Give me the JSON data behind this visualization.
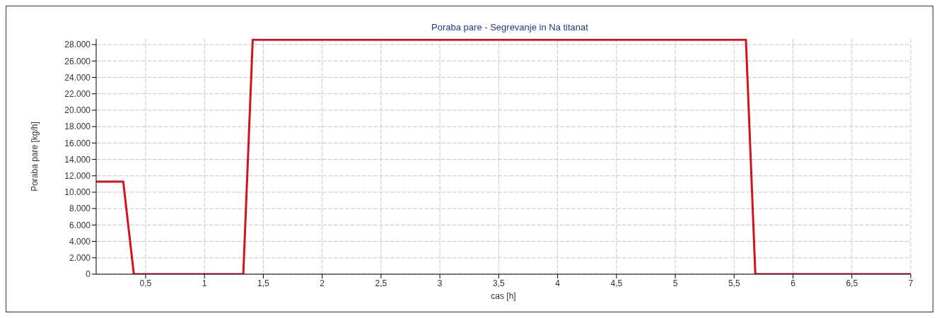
{
  "chart_data": {
    "type": "line",
    "title": "Poraba pare - Segrevanje in Na titanat",
    "xlabel": "cas [h]",
    "ylabel": "Poraba pare [kg/h]",
    "x": [
      0.08,
      0.31,
      0.4,
      1.33,
      1.41,
      5.6,
      5.68,
      7
    ],
    "series": [
      {
        "color": "#d4121e",
        "values": [
          11300,
          11300,
          0,
          0,
          28600,
          28600,
          0,
          0
        ]
      }
    ],
    "xlim": [
      0.08,
      7
    ],
    "xticks": [
      {
        "value": 0.5,
        "label": "0,5"
      },
      1,
      {
        "value": 1.5,
        "label": "1,5"
      },
      2,
      {
        "value": 2.5,
        "label": "2,5"
      },
      3,
      {
        "value": 3.5,
        "label": "3,5"
      },
      4,
      {
        "value": 4.5,
        "label": "4,5"
      },
      5,
      {
        "value": 5.5,
        "label": "5,5"
      },
      6,
      {
        "value": 6.5,
        "label": "6,5"
      },
      7
    ],
    "ylim": [
      0,
      28700
    ],
    "yticks": [
      0,
      {
        "value": 2000,
        "label": "2.000"
      },
      {
        "value": 4000,
        "label": "4.000"
      },
      {
        "value": 6000,
        "label": "6.000"
      },
      {
        "value": 8000,
        "label": "8.000"
      },
      {
        "value": 10000,
        "label": "10.000"
      },
      {
        "value": 12000,
        "label": "12.000"
      },
      {
        "value": 14000,
        "label": "14.000"
      },
      {
        "value": 16000,
        "label": "16.000"
      },
      {
        "value": 18000,
        "label": "18.000"
      },
      {
        "value": 20000,
        "label": "20.000"
      },
      {
        "value": 22000,
        "label": "22.000"
      },
      {
        "value": 24000,
        "label": "24.000"
      },
      {
        "value": 26000,
        "label": "26.000"
      },
      {
        "value": 28000,
        "label": "28.000"
      }
    ],
    "grid": true,
    "legend": false,
    "marker": "none",
    "line_style": "solid"
  }
}
